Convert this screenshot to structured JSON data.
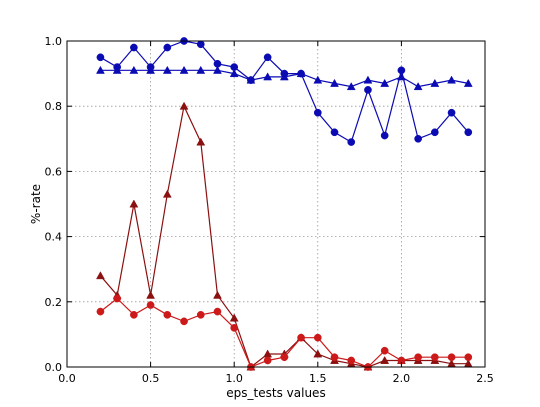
{
  "chart_data": {
    "type": "line",
    "xlabel": "eps_tests values",
    "ylabel": "%-rate",
    "xlim": [
      0.0,
      2.5
    ],
    "ylim": [
      0.0,
      1.0
    ],
    "x_ticks": [
      "0.0",
      "0.5",
      "1.0",
      "1.5",
      "2.0",
      "2.5"
    ],
    "y_ticks": [
      "0.0",
      "0.2",
      "0.4",
      "0.6",
      "0.8",
      "1.0"
    ],
    "grid": true,
    "x": [
      0.2,
      0.3,
      0.4,
      0.5,
      0.6,
      0.7,
      0.8,
      0.9,
      1.0,
      1.1,
      1.2,
      1.3,
      1.4,
      1.5,
      1.6,
      1.7,
      1.8,
      1.9,
      2.0,
      2.1,
      2.2,
      2.3,
      2.4
    ],
    "series": [
      {
        "color": "#0b0bb4",
        "marker": "circle",
        "values": [
          0.95,
          0.92,
          0.98,
          0.92,
          0.98,
          1.0,
          0.99,
          0.93,
          0.92,
          0.88,
          0.95,
          0.9,
          0.9,
          0.78,
          0.72,
          0.69,
          0.85,
          0.71,
          0.91,
          0.7,
          0.72,
          0.78,
          0.72
        ]
      },
      {
        "color": "#0b0bb4",
        "marker": "triangle",
        "values": [
          0.91,
          0.91,
          0.91,
          0.91,
          0.91,
          0.91,
          0.91,
          0.91,
          0.9,
          0.88,
          0.89,
          0.89,
          0.9,
          0.88,
          0.87,
          0.86,
          0.88,
          0.87,
          0.89,
          0.86,
          0.87,
          0.88,
          0.87
        ]
      },
      {
        "color": "#8b1010",
        "marker": "triangle",
        "values": [
          0.28,
          0.22,
          0.5,
          0.22,
          0.53,
          0.8,
          0.69,
          0.22,
          0.15,
          0.0,
          0.04,
          0.04,
          0.09,
          0.04,
          0.02,
          0.01,
          0.0,
          0.02,
          0.02,
          0.02,
          0.02,
          0.01,
          0.01
        ]
      },
      {
        "color": "#cc1a1a",
        "marker": "circle",
        "values": [
          0.17,
          0.21,
          0.16,
          0.19,
          0.16,
          0.14,
          0.16,
          0.17,
          0.12,
          0.0,
          0.02,
          0.03,
          0.09,
          0.09,
          0.03,
          0.02,
          0.0,
          0.05,
          0.02,
          0.03,
          0.03,
          0.03,
          0.03
        ]
      }
    ]
  }
}
